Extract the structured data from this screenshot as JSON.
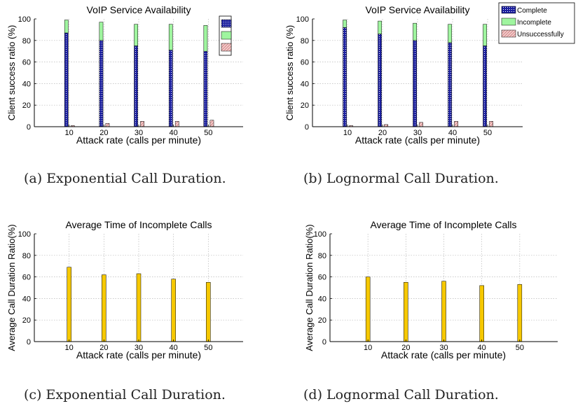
{
  "figure": {
    "captions": [
      "(a) Exponential Call Duration.",
      "(b) Lognormal Call Duration.",
      "(c) Exponential Call Duration.",
      "(d) Lognormal Call Duration."
    ]
  },
  "colors": {
    "complete": "#1b1f9e",
    "incomplete": "#9ff59f",
    "unsuccessfully": "#f1c9c9",
    "duration_bar": "#f6c800",
    "grid": "#b8b8b8",
    "axis": "#000000"
  },
  "chart_data": [
    {
      "type": "bar",
      "stacked": true,
      "title": "VoIP Service Availability",
      "xlabel": "Attack rate (calls per minute)",
      "ylabel": "Client success ratio (%)",
      "categories": [
        10,
        20,
        30,
        40,
        50
      ],
      "xticks": [
        "10",
        "20",
        "30",
        "40",
        "50"
      ],
      "yticks": [
        "0",
        "20",
        "40",
        "60",
        "80",
        "100"
      ],
      "xlim": [
        0,
        60
      ],
      "ylim": [
        0,
        100
      ],
      "grid": true,
      "legend": {
        "placement": "top-right",
        "entries_visible": false
      },
      "series": [
        {
          "key": "complete",
          "values": [
            87,
            80,
            75,
            71,
            70
          ]
        },
        {
          "key": "incomplete",
          "values": [
            12,
            17,
            20,
            24,
            24
          ]
        },
        {
          "key": "unsuccessfully",
          "values": [
            1,
            3,
            5,
            5,
            6
          ]
        }
      ]
    },
    {
      "type": "bar",
      "stacked": true,
      "title": "VoIP Service Availability",
      "xlabel": "Attack rate (calls per minute)",
      "ylabel": "Client success ratio (%)",
      "categories": [
        10,
        20,
        30,
        40,
        50
      ],
      "xticks": [
        "10",
        "20",
        "30",
        "40",
        "50"
      ],
      "yticks": [
        "0",
        "20",
        "40",
        "60",
        "80",
        "100"
      ],
      "xlim": [
        0,
        60
      ],
      "ylim": [
        0,
        100
      ],
      "grid": true,
      "legend": {
        "placement": "top-right",
        "entries_visible": true
      },
      "series": [
        {
          "key": "complete",
          "name": "Complete",
          "values": [
            92,
            86,
            80,
            78,
            75
          ]
        },
        {
          "key": "incomplete",
          "name": "Incomplete",
          "values": [
            7,
            12,
            16,
            17,
            20
          ]
        },
        {
          "key": "unsuccessfully",
          "name": "Unsuccessfully",
          "values": [
            1,
            2,
            4,
            5,
            5
          ]
        }
      ]
    },
    {
      "type": "bar",
      "title": "Average Time of Incomplete Calls",
      "xlabel": "Attack rate (calls per minute)",
      "ylabel": "Average Call Duration Ratio(%)",
      "categories": [
        10,
        20,
        30,
        40,
        50
      ],
      "xticks": [
        "10",
        "20",
        "30",
        "40",
        "50"
      ],
      "yticks": [
        "0",
        "20",
        "40",
        "60",
        "80",
        "100"
      ],
      "xlim": [
        0,
        60
      ],
      "ylim": [
        0,
        100
      ],
      "grid": true,
      "values": [
        69,
        62,
        63,
        58,
        55
      ]
    },
    {
      "type": "bar",
      "title": "Average Time of Incomplete Calls",
      "xlabel": "Attack rate (calls per minute)",
      "ylabel": "Average Call Duration Ratio(%)",
      "categories": [
        10,
        20,
        30,
        40,
        50
      ],
      "xticks": [
        "10",
        "20",
        "30",
        "40",
        "50"
      ],
      "yticks": [
        "0",
        "20",
        "40",
        "60",
        "80",
        "100"
      ],
      "xlim": [
        0,
        60
      ],
      "ylim": [
        0,
        100
      ],
      "grid": true,
      "values": [
        60,
        55,
        56,
        52,
        53
      ]
    }
  ]
}
